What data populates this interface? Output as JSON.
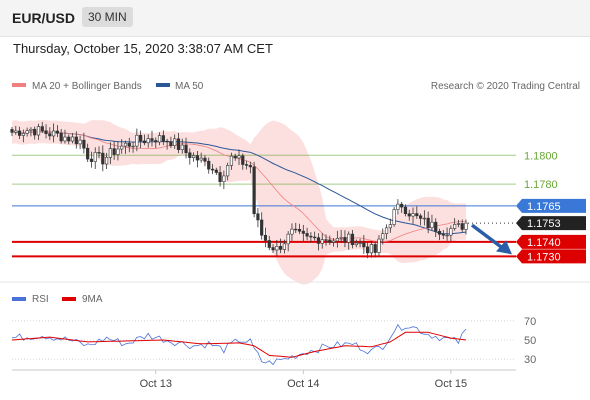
{
  "header": {
    "symbol": "EUR/USD",
    "timeframe": "30 MIN"
  },
  "datetime": "Thursday, October 15, 2020 3:38:07 AM CET",
  "legend": {
    "ma20_label": "MA 20 + Bollinger Bands",
    "ma50_label": "MA 50",
    "credit": "Research © 2020 Trading Central",
    "ma20_color": "#f08080",
    "ma50_color": "#2b5797"
  },
  "rsi_legend": {
    "rsi_label": "RSI",
    "ma_label": "9MA",
    "rsi_color": "#4a72d8",
    "ma_color": "#e00000"
  },
  "chart_data": [
    {
      "type": "candlestick",
      "ylim": [
        1.1715,
        1.183
      ],
      "x_ticks": [
        {
          "label": "Oct 13",
          "index": 38
        },
        {
          "label": "Oct 14",
          "index": 77
        },
        {
          "label": "Oct 15",
          "index": 116
        }
      ],
      "last_price": 1.1753,
      "levels": [
        {
          "value": 1.18,
          "label": "1.1800",
          "color": "#6aa83a",
          "style": "text"
        },
        {
          "value": 1.178,
          "label": "1.1780",
          "color": "#6aa83a",
          "style": "text"
        },
        {
          "value": 1.1765,
          "label": "1.1765",
          "color": "#3a78d8",
          "style": "box"
        },
        {
          "value": 1.174,
          "label": "1.1740",
          "color": "#dd0000",
          "style": "box"
        },
        {
          "value": 1.173,
          "label": "1.1730",
          "color": "#dd0000",
          "style": "box"
        }
      ],
      "close_anchors": [
        [
          0,
          1.1816
        ],
        [
          5,
          1.1818
        ],
        [
          12,
          1.1814
        ],
        [
          18,
          1.181
        ],
        [
          20,
          1.18
        ],
        [
          24,
          1.1797
        ],
        [
          28,
          1.1805
        ],
        [
          33,
          1.181
        ],
        [
          38,
          1.1812
        ],
        [
          42,
          1.181
        ],
        [
          46,
          1.1802
        ],
        [
          50,
          1.1796
        ],
        [
          53,
          1.1792
        ],
        [
          55,
          1.1785
        ],
        [
          58,
          1.1798
        ],
        [
          61,
          1.1795
        ],
        [
          63,
          1.1792
        ],
        [
          64,
          1.176
        ],
        [
          66,
          1.1745
        ],
        [
          68,
          1.1738
        ],
        [
          70,
          1.1735
        ],
        [
          74,
          1.1746
        ],
        [
          78,
          1.1742
        ],
        [
          82,
          1.1743
        ],
        [
          86,
          1.1741
        ],
        [
          90,
          1.1742
        ],
        [
          93,
          1.1737
        ],
        [
          96,
          1.1733
        ],
        [
          98,
          1.1745
        ],
        [
          101,
          1.176
        ],
        [
          103,
          1.1766
        ],
        [
          106,
          1.1758
        ],
        [
          110,
          1.1752
        ],
        [
          114,
          1.1748
        ],
        [
          118,
          1.175
        ],
        [
          120,
          1.1753
        ]
      ]
    },
    {
      "type": "line",
      "name": "RSI",
      "ylim": [
        25,
        75
      ],
      "y_ticks": [
        70,
        50,
        30
      ],
      "series_anchors": {
        "rsi": [
          [
            0,
            52
          ],
          [
            8,
            55
          ],
          [
            15,
            50
          ],
          [
            20,
            44
          ],
          [
            25,
            52
          ],
          [
            30,
            46
          ],
          [
            36,
            55
          ],
          [
            42,
            49
          ],
          [
            48,
            44
          ],
          [
            52,
            46
          ],
          [
            56,
            40
          ],
          [
            60,
            50
          ],
          [
            63,
            48
          ],
          [
            64,
            40
          ],
          [
            66,
            28
          ],
          [
            68,
            26
          ],
          [
            72,
            30
          ],
          [
            78,
            38
          ],
          [
            84,
            44
          ],
          [
            90,
            46
          ],
          [
            95,
            38
          ],
          [
            98,
            44
          ],
          [
            101,
            60
          ],
          [
            104,
            66
          ],
          [
            107,
            62
          ],
          [
            110,
            56
          ],
          [
            114,
            52
          ],
          [
            118,
            48
          ],
          [
            120,
            60
          ]
        ],
        "ma9": [
          [
            0,
            50
          ],
          [
            10,
            53
          ],
          [
            20,
            48
          ],
          [
            30,
            49
          ],
          [
            40,
            50
          ],
          [
            50,
            46
          ],
          [
            60,
            47
          ],
          [
            64,
            44
          ],
          [
            68,
            34
          ],
          [
            74,
            32
          ],
          [
            80,
            38
          ],
          [
            88,
            44
          ],
          [
            95,
            43
          ],
          [
            100,
            48
          ],
          [
            104,
            58
          ],
          [
            110,
            58
          ],
          [
            116,
            52
          ],
          [
            120,
            50
          ]
        ]
      }
    }
  ]
}
